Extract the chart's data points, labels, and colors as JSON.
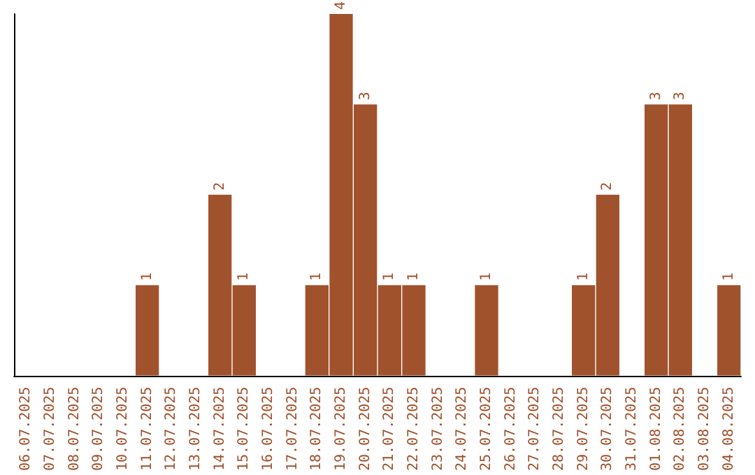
{
  "chart_data": {
    "type": "bar",
    "categories": [
      "06.07.2025",
      "07.07.2025",
      "08.07.2025",
      "09.07.2025",
      "10.07.2025",
      "11.07.2025",
      "12.07.2025",
      "13.07.2025",
      "14.07.2025",
      "15.07.2025",
      "16.07.2025",
      "17.07.2025",
      "18.07.2025",
      "19.07.2025",
      "20.07.2025",
      "21.07.2025",
      "22.07.2025",
      "23.07.2025",
      "24.07.2025",
      "25.07.2025",
      "26.07.2025",
      "27.07.2025",
      "28.07.2025",
      "29.07.2025",
      "30.07.2025",
      "31.07.2025",
      "01.08.2025",
      "02.08.2025",
      "03.08.2025",
      "04.08.2025"
    ],
    "values": [
      0,
      0,
      0,
      0,
      0,
      1,
      0,
      0,
      2,
      1,
      0,
      0,
      1,
      4,
      3,
      1,
      1,
      0,
      0,
      1,
      0,
      0,
      0,
      1,
      2,
      0,
      3,
      3,
      0,
      1
    ],
    "value_labels": [
      null,
      null,
      null,
      null,
      null,
      "1",
      null,
      null,
      "2",
      "1",
      null,
      null,
      "1",
      "4",
      "3",
      "1",
      "1",
      null,
      null,
      "1",
      null,
      null,
      null,
      "1",
      "2",
      null,
      "3",
      "3",
      null,
      "1"
    ],
    "color": "#a0522d",
    "tick_labels": "x",
    "grid": false
  }
}
